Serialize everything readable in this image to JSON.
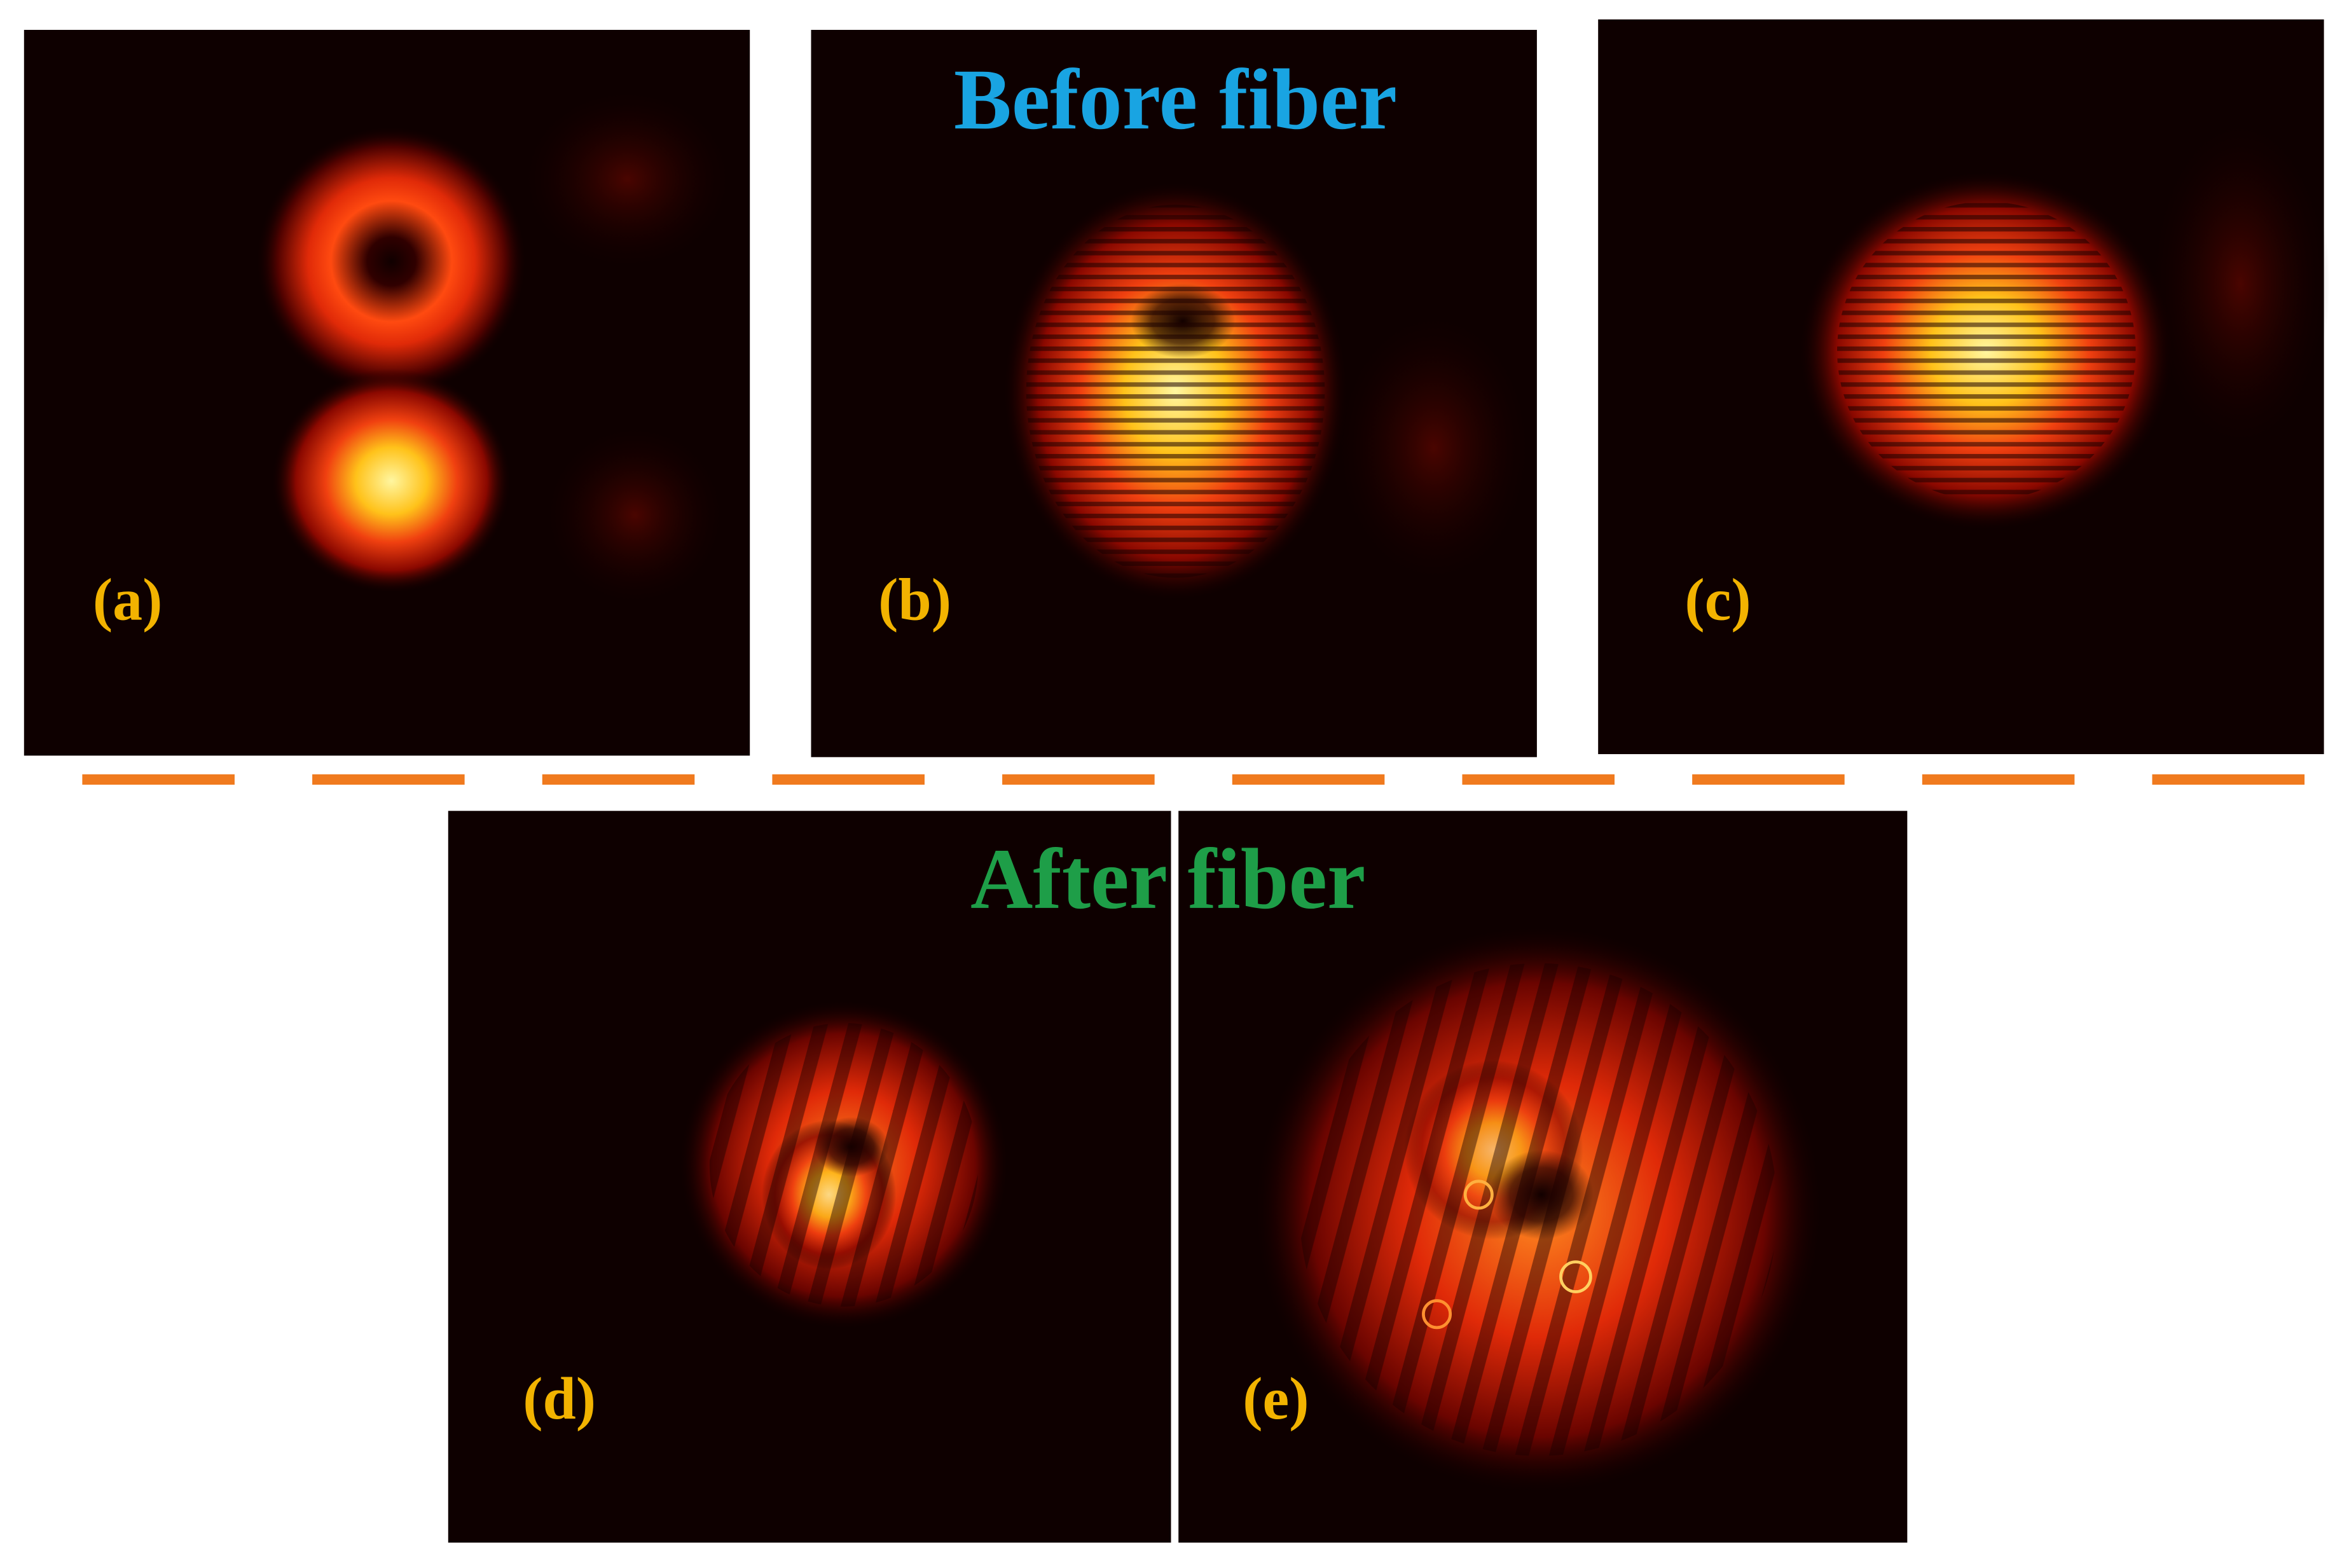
{
  "header": {
    "top_title": "Before fiber",
    "bottom_title": "After fiber"
  },
  "panels": [
    {
      "label": "(a)"
    },
    {
      "label": "(b)"
    },
    {
      "label": "(c)"
    },
    {
      "label": "(d)"
    },
    {
      "label": "(e)"
    }
  ]
}
